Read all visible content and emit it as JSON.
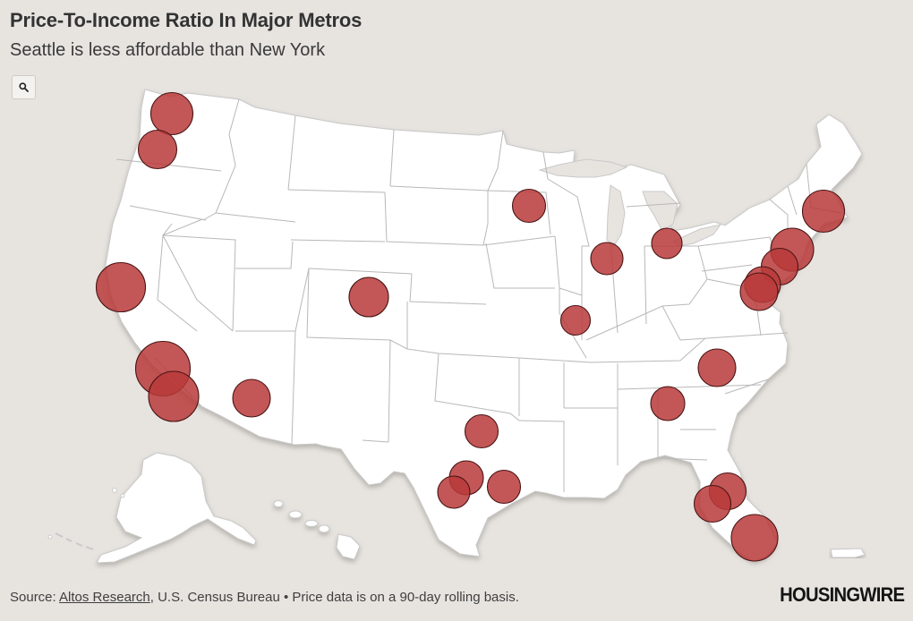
{
  "header": {
    "title": "Price-To-Income Ratio In Major Metros",
    "subtitle": "Seattle is less affordable than New York"
  },
  "controls": {
    "zoom_icon": "search-icon"
  },
  "map": {
    "type": "bubble-map",
    "region": "United States",
    "colors": {
      "background": "#e7e4e0",
      "land": "#ffffff",
      "border": "#b9b9b9",
      "bubble_fill": "#b83a3a",
      "bubble_stroke": "#4a1414"
    }
  },
  "footer": {
    "source_prefix": "Source: ",
    "source_link": "Altos Research",
    "source_suffix": ", U.S. Census Bureau • Price data is on a 90-day rolling basis.",
    "logo": "HOUSINGWIRE"
  }
}
